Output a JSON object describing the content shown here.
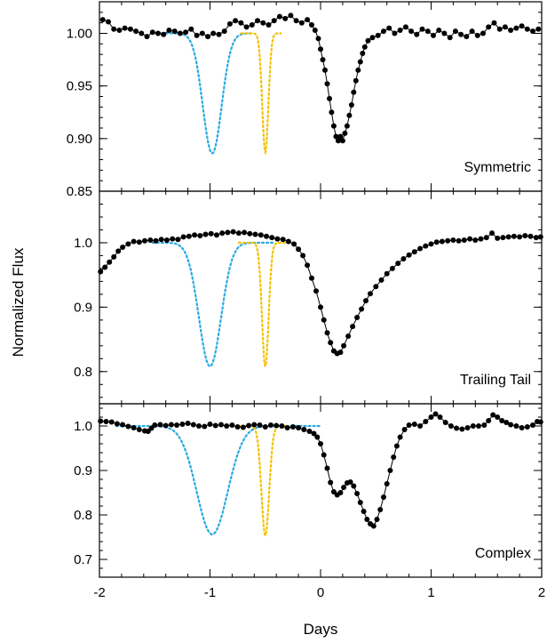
{
  "chart_data": {
    "type": "line",
    "xlabel": "Days",
    "ylabel": "Normalized Flux",
    "xlim": [
      -2,
      2
    ],
    "xticks": [
      -2,
      -1,
      0,
      1,
      2
    ],
    "xtick_labels": [
      "-2",
      "-1",
      "0",
      "1",
      "2"
    ],
    "colors": {
      "observed": "#000000",
      "model_wide": "#29a9e0",
      "model_narrow": "#f2c200"
    },
    "panels": [
      {
        "label": "Symmetric",
        "ylim": [
          0.85,
          1.03
        ],
        "yticks": [
          0.85,
          0.9,
          0.95,
          1.0
        ],
        "ytick_labels": [
          "0.85",
          "0.90",
          "0.95",
          "1.00"
        ],
        "observed": [
          [
            -1.97,
            1.013
          ],
          [
            -1.92,
            1.011
          ],
          [
            -1.87,
            1.004
          ],
          [
            -1.82,
            1.003
          ],
          [
            -1.77,
            1.005
          ],
          [
            -1.72,
            1.004
          ],
          [
            -1.67,
            1.002
          ],
          [
            -1.62,
            1.0
          ],
          [
            -1.57,
            0.997
          ],
          [
            -1.52,
            1.001
          ],
          [
            -1.47,
            1.0
          ],
          [
            -1.42,
            0.999
          ],
          [
            -1.37,
            1.003
          ],
          [
            -1.32,
            1.002
          ],
          [
            -1.27,
            1.0
          ],
          [
            -1.22,
            1.001
          ],
          [
            -1.17,
            1.004
          ],
          [
            -1.12,
            0.998
          ],
          [
            -1.07,
            1.0
          ],
          [
            -1.02,
            0.997
          ],
          [
            -0.97,
            1.0
          ],
          [
            -0.92,
            0.999
          ],
          [
            -0.87,
            1.002
          ],
          [
            -0.82,
            1.009
          ],
          [
            -0.77,
            1.012
          ],
          [
            -0.72,
            1.01
          ],
          [
            -0.67,
            1.006
          ],
          [
            -0.62,
            1.008
          ],
          [
            -0.57,
            1.012
          ],
          [
            -0.52,
            1.01
          ],
          [
            -0.47,
            1.008
          ],
          [
            -0.42,
            1.012
          ],
          [
            -0.37,
            1.016
          ],
          [
            -0.32,
            1.014
          ],
          [
            -0.27,
            1.017
          ],
          [
            -0.22,
            1.012
          ],
          [
            -0.17,
            1.01
          ],
          [
            -0.12,
            1.013
          ],
          [
            -0.08,
            1.008
          ],
          [
            -0.05,
            1.003
          ],
          [
            -0.02,
            0.995
          ],
          [
            0.0,
            0.985
          ],
          [
            0.02,
            0.975
          ],
          [
            0.04,
            0.965
          ],
          [
            0.06,
            0.952
          ],
          [
            0.08,
            0.938
          ],
          [
            0.1,
            0.925
          ],
          [
            0.12,
            0.912
          ],
          [
            0.14,
            0.902
          ],
          [
            0.16,
            0.898
          ],
          [
            0.18,
            0.902
          ],
          [
            0.2,
            0.898
          ],
          [
            0.22,
            0.905
          ],
          [
            0.24,
            0.912
          ],
          [
            0.26,
            0.922
          ],
          [
            0.28,
            0.932
          ],
          [
            0.3,
            0.944
          ],
          [
            0.32,
            0.955
          ],
          [
            0.34,
            0.965
          ],
          [
            0.36,
            0.973
          ],
          [
            0.38,
            0.981
          ],
          [
            0.4,
            0.987
          ],
          [
            0.43,
            0.993
          ],
          [
            0.47,
            0.996
          ],
          [
            0.52,
            0.998
          ],
          [
            0.57,
            1.002
          ],
          [
            0.62,
            1.005
          ],
          [
            0.67,
            1.0
          ],
          [
            0.72,
            1.003
          ],
          [
            0.77,
            1.006
          ],
          [
            0.82,
            1.002
          ],
          [
            0.87,
            0.999
          ],
          [
            0.92,
            1.004
          ],
          [
            0.97,
            1.002
          ],
          [
            1.02,
            0.998
          ],
          [
            1.07,
            1.003
          ],
          [
            1.12,
            1.0
          ],
          [
            1.17,
            0.996
          ],
          [
            1.22,
            1.002
          ],
          [
            1.27,
            0.999
          ],
          [
            1.32,
            0.997
          ],
          [
            1.37,
            1.002
          ],
          [
            1.42,
            0.998
          ],
          [
            1.47,
            1.0
          ],
          [
            1.52,
            1.006
          ],
          [
            1.57,
            1.01
          ],
          [
            1.62,
            1.004
          ],
          [
            1.67,
            1.006
          ],
          [
            1.72,
            1.003
          ],
          [
            1.77,
            1.005
          ],
          [
            1.82,
            1.007
          ],
          [
            1.87,
            1.004
          ],
          [
            1.92,
            1.002
          ],
          [
            1.97,
            1.004
          ]
        ],
        "model_wide": {
          "baseline": 1.0,
          "depth": 0.114,
          "center": -0.98,
          "sigma": 0.085,
          "x_range": [
            -1.52,
            -0.62
          ]
        },
        "model_narrow": {
          "baseline": 1.0,
          "depth": 0.113,
          "center": -0.5,
          "sigma": 0.028,
          "x_range": [
            -0.72,
            -0.36
          ]
        }
      },
      {
        "label": "Trailing Tail",
        "ylim": [
          0.75,
          1.08
        ],
        "yticks": [
          0.8,
          0.9,
          1.0
        ],
        "ytick_labels": [
          "0.8",
          "0.9",
          "1.0"
        ],
        "observed": [
          [
            -1.99,
            0.955
          ],
          [
            -1.95,
            0.962
          ],
          [
            -1.91,
            0.97
          ],
          [
            -1.87,
            0.978
          ],
          [
            -1.83,
            0.987
          ],
          [
            -1.79,
            0.993
          ],
          [
            -1.74,
            0.998
          ],
          [
            -1.69,
            1.002
          ],
          [
            -1.64,
            1.001
          ],
          [
            -1.59,
            1.003
          ],
          [
            -1.54,
            1.004
          ],
          [
            -1.49,
            1.003
          ],
          [
            -1.44,
            1.005
          ],
          [
            -1.39,
            1.004
          ],
          [
            -1.34,
            1.006
          ],
          [
            -1.29,
            1.005
          ],
          [
            -1.24,
            1.009
          ],
          [
            -1.19,
            1.01
          ],
          [
            -1.14,
            1.012
          ],
          [
            -1.09,
            1.011
          ],
          [
            -1.04,
            1.013
          ],
          [
            -0.99,
            1.014
          ],
          [
            -0.94,
            1.012
          ],
          [
            -0.89,
            1.015
          ],
          [
            -0.84,
            1.016
          ],
          [
            -0.79,
            1.017
          ],
          [
            -0.74,
            1.015
          ],
          [
            -0.69,
            1.016
          ],
          [
            -0.64,
            1.014
          ],
          [
            -0.59,
            1.013
          ],
          [
            -0.54,
            1.012
          ],
          [
            -0.49,
            1.01
          ],
          [
            -0.44,
            1.008
          ],
          [
            -0.39,
            1.006
          ],
          [
            -0.34,
            1.005
          ],
          [
            -0.29,
            1.002
          ],
          [
            -0.24,
            0.998
          ],
          [
            -0.2,
            0.99
          ],
          [
            -0.16,
            0.98
          ],
          [
            -0.12,
            0.965
          ],
          [
            -0.08,
            0.945
          ],
          [
            -0.04,
            0.925
          ],
          [
            0.0,
            0.9
          ],
          [
            0.03,
            0.88
          ],
          [
            0.06,
            0.86
          ],
          [
            0.09,
            0.845
          ],
          [
            0.12,
            0.832
          ],
          [
            0.15,
            0.828
          ],
          [
            0.18,
            0.83
          ],
          [
            0.21,
            0.84
          ],
          [
            0.25,
            0.855
          ],
          [
            0.29,
            0.87
          ],
          [
            0.33,
            0.884
          ],
          [
            0.37,
            0.897
          ],
          [
            0.41,
            0.91
          ],
          [
            0.45,
            0.921
          ],
          [
            0.5,
            0.932
          ],
          [
            0.55,
            0.942
          ],
          [
            0.6,
            0.952
          ],
          [
            0.65,
            0.96
          ],
          [
            0.7,
            0.968
          ],
          [
            0.75,
            0.975
          ],
          [
            0.8,
            0.981
          ],
          [
            0.85,
            0.986
          ],
          [
            0.9,
            0.991
          ],
          [
            0.95,
            0.995
          ],
          [
            1.0,
            0.998
          ],
          [
            1.05,
            1.001
          ],
          [
            1.1,
            1.002
          ],
          [
            1.15,
            1.003
          ],
          [
            1.2,
            1.004
          ],
          [
            1.25,
            1.003
          ],
          [
            1.3,
            1.004
          ],
          [
            1.35,
            1.006
          ],
          [
            1.4,
            1.004
          ],
          [
            1.45,
            1.006
          ],
          [
            1.5,
            1.008
          ],
          [
            1.55,
            1.015
          ],
          [
            1.6,
            1.007
          ],
          [
            1.65,
            1.008
          ],
          [
            1.7,
            1.009
          ],
          [
            1.75,
            1.01
          ],
          [
            1.8,
            1.009
          ],
          [
            1.85,
            1.011
          ],
          [
            1.9,
            1.01
          ],
          [
            1.95,
            1.008
          ],
          [
            1.99,
            1.009
          ]
        ],
        "model_wide": {
          "baseline": 1.0,
          "depth": 0.192,
          "center": -1.0,
          "sigma": 0.1,
          "x_range": [
            -1.52,
            -0.42
          ]
        },
        "model_narrow": {
          "baseline": 1.0,
          "depth": 0.192,
          "center": -0.5,
          "sigma": 0.03,
          "x_range": [
            -0.74,
            -0.32
          ]
        }
      },
      {
        "label": "Complex",
        "ylim": [
          0.66,
          1.05
        ],
        "yticks": [
          0.7,
          0.8,
          0.9,
          1.0
        ],
        "ytick_labels": [
          "0.7",
          "0.8",
          "0.9",
          "1.0"
        ],
        "observed": [
          [
            -1.99,
            1.011
          ],
          [
            -1.94,
            1.01
          ],
          [
            -1.89,
            1.009
          ],
          [
            -1.84,
            1.005
          ],
          [
            -1.79,
            1.003
          ],
          [
            -1.74,
            0.999
          ],
          [
            -1.69,
            0.996
          ],
          [
            -1.64,
            0.992
          ],
          [
            -1.59,
            0.989
          ],
          [
            -1.56,
            0.988
          ],
          [
            -1.53,
            0.995
          ],
          [
            -1.5,
            1.002
          ],
          [
            -1.45,
            1.003
          ],
          [
            -1.4,
            1.001
          ],
          [
            -1.35,
            1.003
          ],
          [
            -1.3,
            1.002
          ],
          [
            -1.25,
            1.004
          ],
          [
            -1.2,
            1.006
          ],
          [
            -1.15,
            1.003
          ],
          [
            -1.1,
            1.0
          ],
          [
            -1.05,
            0.999
          ],
          [
            -1.0,
            1.004
          ],
          [
            -0.95,
            1.001
          ],
          [
            -0.9,
            1.003
          ],
          [
            -0.85,
            1.0
          ],
          [
            -0.8,
            1.002
          ],
          [
            -0.75,
            0.998
          ],
          [
            -0.7,
            0.997
          ],
          [
            -0.65,
            1.001
          ],
          [
            -0.6,
            1.003
          ],
          [
            -0.55,
            1.002
          ],
          [
            -0.5,
            0.998
          ],
          [
            -0.45,
            1.002
          ],
          [
            -0.4,
            1.001
          ],
          [
            -0.35,
            1.0
          ],
          [
            -0.3,
            0.996
          ],
          [
            -0.25,
            0.998
          ],
          [
            -0.2,
            0.996
          ],
          [
            -0.15,
            0.992
          ],
          [
            -0.1,
            0.988
          ],
          [
            -0.06,
            0.983
          ],
          [
            -0.03,
            0.975
          ],
          [
            0.0,
            0.96
          ],
          [
            0.03,
            0.935
          ],
          [
            0.06,
            0.905
          ],
          [
            0.09,
            0.873
          ],
          [
            0.12,
            0.852
          ],
          [
            0.15,
            0.845
          ],
          [
            0.18,
            0.85
          ],
          [
            0.21,
            0.862
          ],
          [
            0.24,
            0.872
          ],
          [
            0.27,
            0.874
          ],
          [
            0.3,
            0.865
          ],
          [
            0.33,
            0.848
          ],
          [
            0.36,
            0.828
          ],
          [
            0.39,
            0.808
          ],
          [
            0.42,
            0.79
          ],
          [
            0.45,
            0.78
          ],
          [
            0.48,
            0.775
          ],
          [
            0.51,
            0.79
          ],
          [
            0.54,
            0.812
          ],
          [
            0.57,
            0.84
          ],
          [
            0.6,
            0.87
          ],
          [
            0.63,
            0.9
          ],
          [
            0.66,
            0.93
          ],
          [
            0.69,
            0.955
          ],
          [
            0.72,
            0.975
          ],
          [
            0.76,
            0.992
          ],
          [
            0.8,
            1.002
          ],
          [
            0.85,
            1.004
          ],
          [
            0.9,
            1.0
          ],
          [
            0.95,
            1.01
          ],
          [
            1.0,
            1.02
          ],
          [
            1.04,
            1.027
          ],
          [
            1.08,
            1.02
          ],
          [
            1.13,
            1.008
          ],
          [
            1.18,
            1.0
          ],
          [
            1.23,
            0.995
          ],
          [
            1.28,
            0.993
          ],
          [
            1.33,
            0.996
          ],
          [
            1.38,
            1.0
          ],
          [
            1.43,
            1.0
          ],
          [
            1.48,
            1.002
          ],
          [
            1.52,
            1.012
          ],
          [
            1.56,
            1.025
          ],
          [
            1.6,
            1.02
          ],
          [
            1.64,
            1.012
          ],
          [
            1.68,
            1.008
          ],
          [
            1.72,
            1.003
          ],
          [
            1.77,
            1.0
          ],
          [
            1.82,
            0.996
          ],
          [
            1.87,
            0.998
          ],
          [
            1.92,
            1.002
          ],
          [
            1.96,
            1.01
          ],
          [
            1.99,
            1.009
          ]
        ],
        "model_wide": {
          "baseline": 1.0,
          "depth": 0.244,
          "center": -0.98,
          "sigma": 0.14,
          "x_range": [
            -1.85,
            0.0
          ]
        },
        "model_narrow": {
          "baseline": 1.0,
          "depth": 0.246,
          "center": -0.5,
          "sigma": 0.035,
          "x_range": [
            -0.76,
            -0.3
          ]
        }
      }
    ]
  }
}
